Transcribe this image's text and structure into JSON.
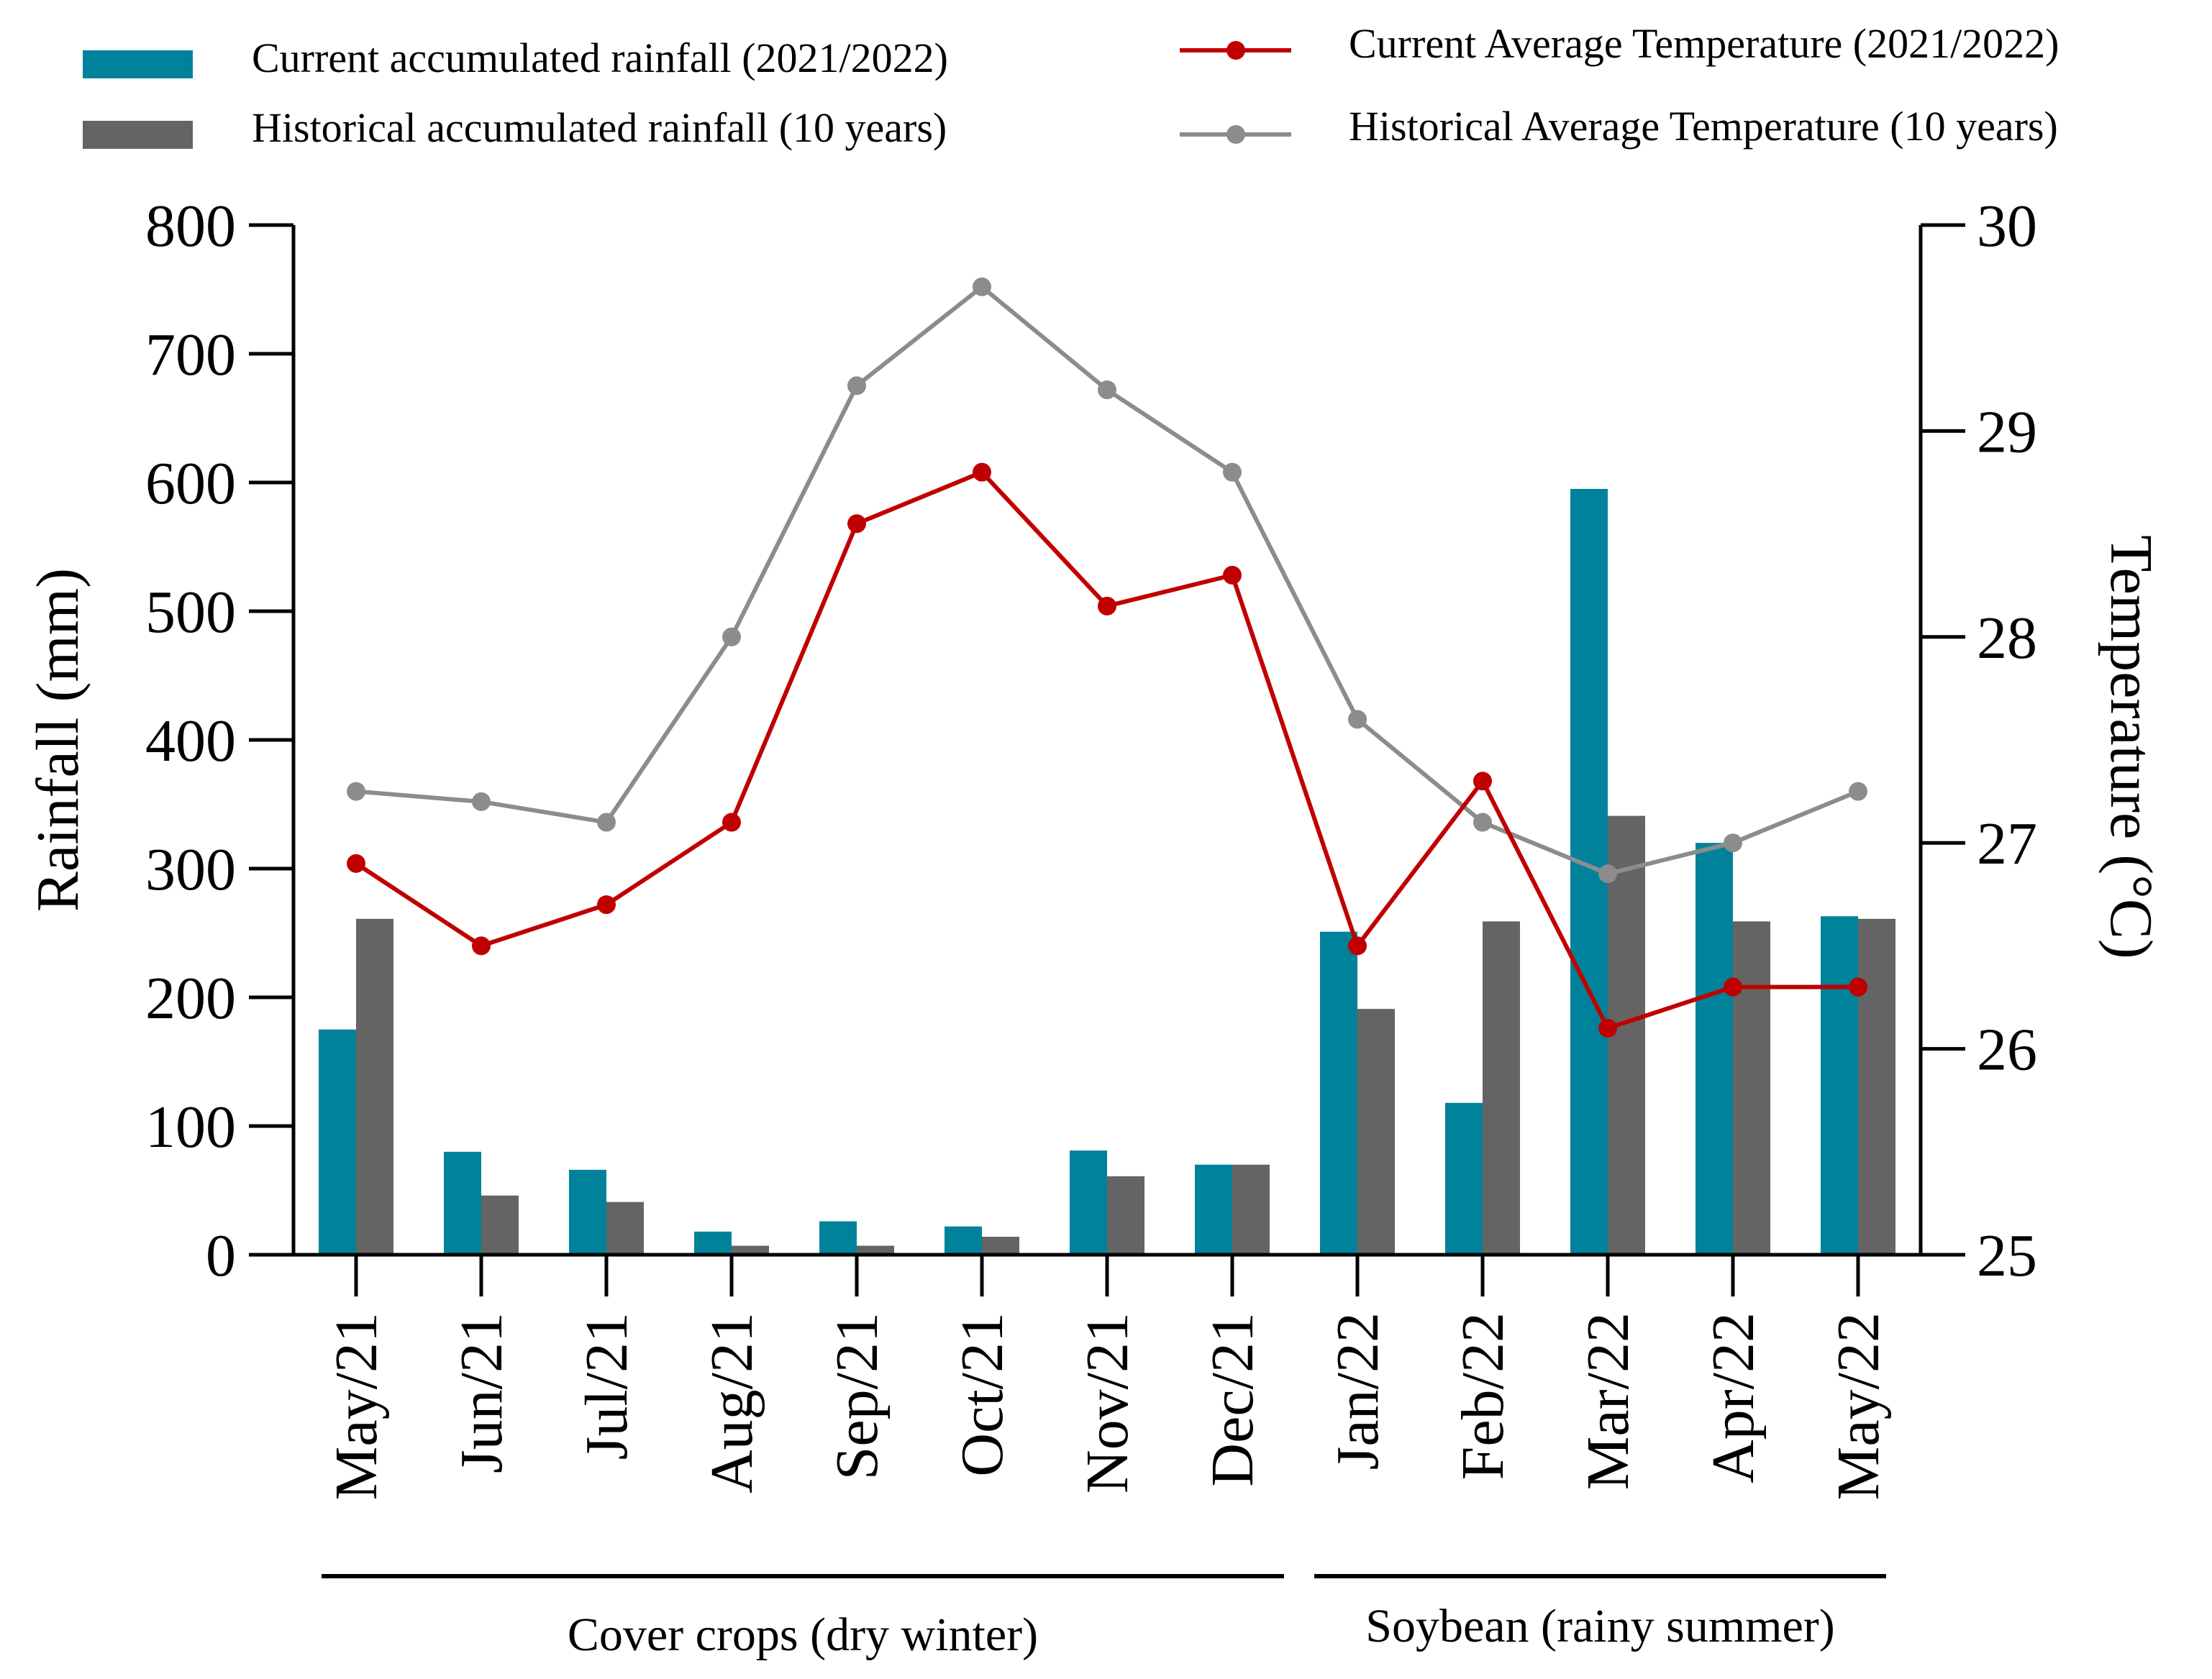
{
  "chart_data": {
    "type": "bar+line",
    "categories": [
      "May/21",
      "Jun/21",
      "Jul/21",
      "Aug/21",
      "Sep/21",
      "Oct/21",
      "Nov/21",
      "Dec/21",
      "Jan/22",
      "Feb/22",
      "Mar/22",
      "Apr/22",
      "May/22"
    ],
    "bar_series": [
      {
        "name": "Current accumulated rainfall (2021/2022)",
        "color": "#00829b",
        "axis": "left",
        "values": [
          175,
          80,
          66,
          18,
          26,
          22,
          81,
          70,
          251,
          118,
          595,
          320,
          263
        ]
      },
      {
        "name": "Historical accumulated rainfall (10 years)",
        "color": "#646464",
        "axis": "left",
        "values": [
          261,
          46,
          41,
          7,
          7,
          14,
          61,
          70,
          191,
          259,
          341,
          259,
          261
        ]
      }
    ],
    "line_series": [
      {
        "name": "Current Average Temperature (2021/2022)",
        "color": "#c00000",
        "axis": "right",
        "values": [
          26.9,
          26.5,
          26.7,
          27.1,
          28.55,
          28.8,
          28.15,
          28.3,
          26.5,
          27.3,
          26.1,
          26.3,
          26.3
        ]
      },
      {
        "name": "Historical Average Temperature (10 years)",
        "color": "#8c8c8c",
        "axis": "right",
        "values": [
          27.25,
          27.2,
          27.1,
          28.0,
          29.22,
          29.7,
          29.2,
          28.8,
          27.6,
          27.1,
          26.85,
          27.0,
          27.25
        ]
      }
    ],
    "ylabel": "Rainfall (mm)",
    "ylim": [
      0,
      800
    ],
    "yticks": [
      0,
      100,
      200,
      300,
      400,
      500,
      600,
      700,
      800
    ],
    "y2label": "Temperature (°C)",
    "y2lim": [
      25,
      30
    ],
    "y2ticks": [
      25,
      26,
      27,
      28,
      29,
      30
    ],
    "groups": [
      {
        "label": "Cover crops (dry winter)",
        "from": 0,
        "to": 7
      },
      {
        "label": "Soybean (rainy summer)",
        "from": 8,
        "to": 12
      }
    ],
    "legend_position": "top",
    "grid": false
  }
}
